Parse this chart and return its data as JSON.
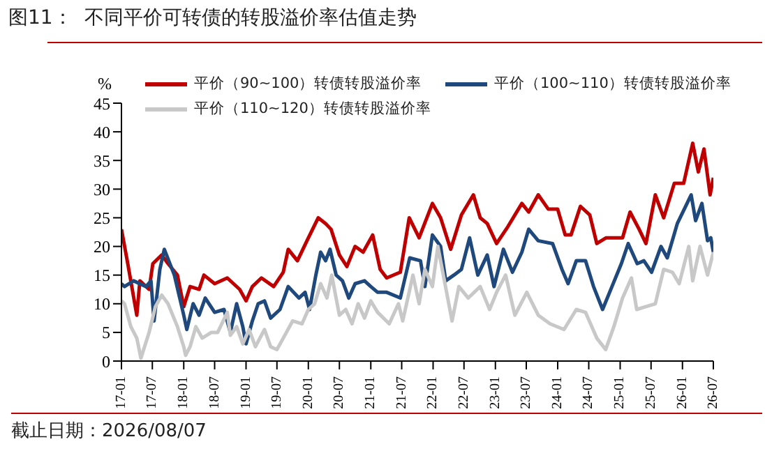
{
  "chart_data": {
    "type": "line",
    "title": "图11：  不同平价可转债的转股溢价率估值走势",
    "ylabel": "%",
    "annotations": [
      "截止日期：2026/08/07"
    ],
    "legend": "top",
    "xlim": [
      "2017-01",
      "2026-07"
    ],
    "ylim": [
      0,
      45
    ],
    "yticks": [
      0,
      5,
      10,
      15,
      20,
      25,
      30,
      35,
      40,
      45
    ],
    "xticks": [
      {
        "value": "2017-01",
        "label": "17-01"
      },
      {
        "value": "2017-07",
        "label": "17-07"
      },
      {
        "value": "2018-01",
        "label": "18-01"
      },
      {
        "value": "2018-07",
        "label": "18-07"
      },
      {
        "value": "2019-01",
        "label": "19-01"
      },
      {
        "value": "2019-07",
        "label": "19-07"
      },
      {
        "value": "2020-01",
        "label": "20-01"
      },
      {
        "value": "2020-07",
        "label": "20-07"
      },
      {
        "value": "2021-01",
        "label": "21-01"
      },
      {
        "value": "2021-07",
        "label": "21-07"
      },
      {
        "value": "2022-01",
        "label": "22-01"
      },
      {
        "value": "2022-07",
        "label": "22-07"
      },
      {
        "value": "2023-01",
        "label": "23-01"
      },
      {
        "value": "2023-07",
        "label": "23-07"
      },
      {
        "value": "2024-01",
        "label": "24-01"
      },
      {
        "value": "2024-07",
        "label": "24-07"
      },
      {
        "value": "2025-01",
        "label": "25-01"
      },
      {
        "value": "2025-07",
        "label": "25-07"
      },
      {
        "value": "2026-01",
        "label": "26-01"
      },
      {
        "value": "2026-07",
        "label": "26-07"
      }
    ],
    "series": [
      {
        "name": "平价（90~100）转债转股溢价率",
        "color": "#c00000",
        "x": [
          "2017-01-01",
          "2017-02-07",
          "2017-04-01",
          "2017-04-19",
          "2017-06-12",
          "2017-07-04",
          "2017-08-25",
          "2017-10-01",
          "2017-11-25",
          "2018-01-01",
          "2018-02-07",
          "2018-04-01",
          "2018-04-29",
          "2018-07-01",
          "2018-09-13",
          "2018-11-25",
          "2019-01-01",
          "2019-02-07",
          "2019-04-01",
          "2019-06-12",
          "2019-08-07",
          "2019-09-05",
          "2019-10-29",
          "2019-12-24",
          "2020-02-28",
          "2020-04-11",
          "2020-05-13",
          "2020-07-01",
          "2020-08-14",
          "2020-10-01",
          "2020-11-17",
          "2021-01-12",
          "2021-02-25",
          "2021-04-04",
          "2021-06-23",
          "2021-08-14",
          "2021-10-11",
          "2021-12-28",
          "2022-02-14",
          "2022-04-14",
          "2022-06-16",
          "2022-08-25",
          "2022-10-04",
          "2022-11-14",
          "2023-01-08",
          "2023-03-16",
          "2023-06-05",
          "2023-07-15",
          "2023-09-09",
          "2023-11-07",
          "2024-01-01",
          "2024-02-14",
          "2024-03-19",
          "2024-05-13",
          "2024-07-07",
          "2024-08-17",
          "2024-10-11",
          "2025-01-15",
          "2025-02-28",
          "2025-04-22",
          "2025-06-01",
          "2025-07-26",
          "2025-09-13",
          "2025-11-14",
          "2026-01-08",
          "2026-03-02",
          "2026-04-04",
          "2026-05-07",
          "2026-06-12",
          "2026-07-01"
        ],
        "values": [
          23,
          17,
          8,
          14,
          12.5,
          17,
          18.5,
          17,
          15,
          9.5,
          13,
          12.5,
          15,
          13.5,
          14.5,
          12.5,
          10.5,
          13,
          14.5,
          13,
          15.5,
          19.5,
          17.5,
          21,
          25,
          24,
          23,
          18.5,
          16.5,
          20,
          19,
          22,
          16,
          14.5,
          15.5,
          25,
          21.5,
          27.5,
          25,
          19.5,
          25.5,
          29,
          25,
          24,
          20.5,
          23.5,
          27.5,
          26,
          29,
          26.5,
          26.5,
          22,
          22,
          27,
          25.5,
          20.5,
          21.5,
          21.5,
          26,
          23,
          20.5,
          29,
          25,
          31,
          31,
          38,
          33,
          37,
          29,
          32
        ]
      },
      {
        "name": "平价（100~110）转债转股溢价率",
        "color": "#1f497d",
        "x": [
          "2017-01-01",
          "2017-01-19",
          "2017-03-13",
          "2017-05-25",
          "2017-06-23",
          "2017-07-11",
          "2017-08-14",
          "2017-09-09",
          "2017-11-07",
          "2018-01-01",
          "2018-01-19",
          "2018-02-25",
          "2018-04-01",
          "2018-05-07",
          "2018-07-01",
          "2018-08-25",
          "2018-10-01",
          "2018-11-07",
          "2018-12-13",
          "2019-01-01",
          "2019-02-07",
          "2019-03-13",
          "2019-04-19",
          "2019-05-25",
          "2019-07-19",
          "2019-09-05",
          "2019-11-07",
          "2019-12-13",
          "2020-01-08",
          "2020-02-14",
          "2020-03-13",
          "2020-04-11",
          "2020-05-07",
          "2020-06-12",
          "2020-07-19",
          "2020-08-25",
          "2020-10-01",
          "2020-11-25",
          "2021-01-01",
          "2021-02-10",
          "2021-04-04",
          "2021-06-23",
          "2021-08-17",
          "2021-10-19",
          "2021-11-14",
          "2021-12-28",
          "2022-02-14",
          "2022-03-16",
          "2022-05-03",
          "2022-06-16",
          "2022-08-03",
          "2022-09-20",
          "2022-11-14",
          "2022-12-24",
          "2023-02-17",
          "2023-04-11",
          "2023-06-05",
          "2023-07-15",
          "2023-09-09",
          "2023-12-02",
          "2024-01-26",
          "2024-03-02",
          "2024-04-19",
          "2024-06-12",
          "2024-07-29",
          "2024-09-20",
          "2024-11-14",
          "2025-01-08",
          "2025-02-17",
          "2025-04-11",
          "2025-05-20",
          "2025-07-04",
          "2025-08-28",
          "2025-10-04",
          "2025-12-02",
          "2026-02-21",
          "2026-03-19",
          "2026-04-25",
          "2026-05-28",
          "2026-06-16",
          "2026-07-01"
        ],
        "values": [
          13.5,
          13,
          14,
          13,
          14,
          7,
          16,
          19.5,
          15,
          8,
          5.5,
          10,
          8,
          11,
          8.5,
          9,
          5,
          10,
          6,
          3,
          7,
          10,
          10.5,
          7.5,
          9,
          13,
          11,
          12,
          9,
          15,
          19,
          17.5,
          19.5,
          15,
          14,
          11,
          13.5,
          14,
          13,
          12,
          12,
          11,
          18,
          17.5,
          13,
          22,
          20,
          14,
          15,
          16,
          21.5,
          15,
          18.5,
          13,
          19.5,
          15.5,
          19,
          23,
          21,
          20.5,
          16,
          13.5,
          17.5,
          17.5,
          13,
          9,
          13,
          17,
          20.5,
          17,
          17.5,
          15.5,
          20,
          18,
          24,
          29,
          24.5,
          27.5,
          21,
          21.5,
          19
        ]
      },
      {
        "name": "平价（110~120）转债转股溢价率",
        "color": "#c8c8c8",
        "x": [
          "2017-01-01",
          "2017-01-19",
          "2017-02-25",
          "2017-04-01",
          "2017-04-25",
          "2017-06-12",
          "2017-07-19",
          "2017-08-25",
          "2017-10-01",
          "2017-11-25",
          "2018-01-01",
          "2018-01-12",
          "2018-02-07",
          "2018-03-13",
          "2018-04-19",
          "2018-06-12",
          "2018-07-19",
          "2018-09-13",
          "2018-10-01",
          "2018-11-07",
          "2018-12-13",
          "2019-01-19",
          "2019-02-25",
          "2019-04-19",
          "2019-05-25",
          "2019-07-01",
          "2019-08-07",
          "2019-10-01",
          "2019-11-25",
          "2020-01-01",
          "2020-02-07",
          "2020-03-13",
          "2020-04-19",
          "2020-05-17",
          "2020-07-01",
          "2020-08-07",
          "2020-09-13",
          "2020-10-19",
          "2020-11-25",
          "2021-01-01",
          "2021-02-10",
          "2021-04-19",
          "2021-06-12",
          "2021-07-07",
          "2021-09-05",
          "2021-10-11",
          "2021-11-14",
          "2021-12-28",
          "2022-01-29",
          "2022-03-02",
          "2022-04-22",
          "2022-06-01",
          "2022-07-26",
          "2022-10-04",
          "2022-11-28",
          "2023-01-08",
          "2023-03-02",
          "2023-04-25",
          "2023-07-04",
          "2023-09-09",
          "2023-11-17",
          "2024-02-07",
          "2024-04-19",
          "2024-06-12",
          "2024-08-17",
          "2024-10-08",
          "2024-11-25",
          "2025-01-15",
          "2025-03-08",
          "2025-04-08",
          "2025-06-01",
          "2025-07-26",
          "2025-09-13",
          "2025-11-03",
          "2025-12-13",
          "2026-02-07",
          "2026-03-02",
          "2026-04-14",
          "2026-05-28",
          "2026-07-01"
        ],
        "values": [
          10.5,
          10,
          6,
          4,
          0.5,
          5,
          9.5,
          11.5,
          10,
          6,
          2.5,
          1,
          2.5,
          6,
          4,
          5,
          5,
          8.5,
          4.5,
          6,
          3,
          5.5,
          2.5,
          5.5,
          2.5,
          2,
          4,
          7,
          6.5,
          9,
          10,
          13.5,
          11,
          15,
          8,
          9,
          6.5,
          10,
          7.5,
          10.5,
          8.5,
          6.5,
          10,
          7,
          15,
          10,
          16,
          13,
          20,
          15,
          7,
          13,
          11,
          13,
          9,
          12,
          15,
          8,
          12,
          8,
          6.5,
          5.5,
          9,
          8.5,
          4,
          2,
          6,
          11,
          14.5,
          9,
          9.5,
          10,
          16,
          15.5,
          13.5,
          20,
          14,
          20,
          15,
          19
        ]
      }
    ]
  }
}
